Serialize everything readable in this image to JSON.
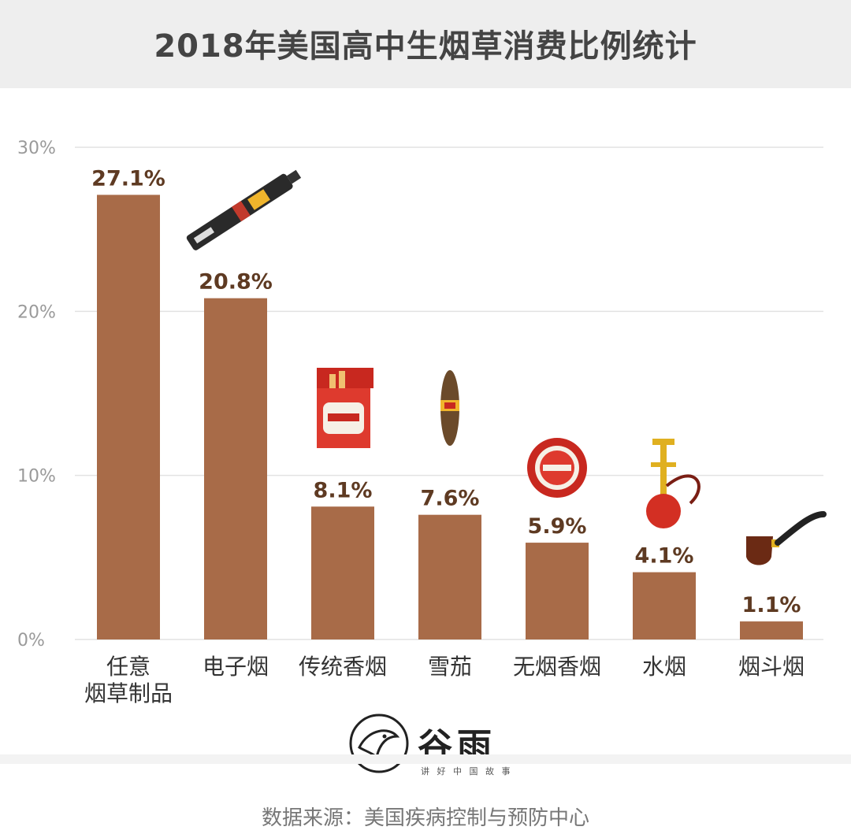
{
  "title": "2018年美国高中生烟草消费比例统计",
  "source": "数据来源：美国疾病控制与预防中心",
  "logo": {
    "name": "谷雨",
    "tagline": "讲 好 中 国 故 事"
  },
  "colors": {
    "bar": "#a86b48",
    "label": "#5e3a22",
    "grid": "#e2e2e2",
    "tick": "#9a9a9a",
    "category": "#333333"
  },
  "chart_data": {
    "type": "bar",
    "categories": [
      "任意\n烟草制品",
      "电子烟",
      "传统香烟",
      "雪茄",
      "无烟香烟",
      "水烟",
      "烟斗烟"
    ],
    "values": [
      27.1,
      20.8,
      8.1,
      7.6,
      5.9,
      4.1,
      1.1
    ],
    "value_labels": [
      "27.1%",
      "20.8%",
      "8.1%",
      "7.6%",
      "5.9%",
      "4.1%",
      "1.1%"
    ],
    "yticks": [
      "0%",
      "10%",
      "20%",
      "30%"
    ],
    "ytick_values": [
      0,
      10,
      20,
      30
    ],
    "ylim": [
      0,
      30
    ],
    "grid": true,
    "icons": [
      "",
      "e-cigarette-icon",
      "cigarette-pack-icon",
      "cigar-icon",
      "snuff-tin-icon",
      "hookah-icon",
      "pipe-icon"
    ]
  }
}
